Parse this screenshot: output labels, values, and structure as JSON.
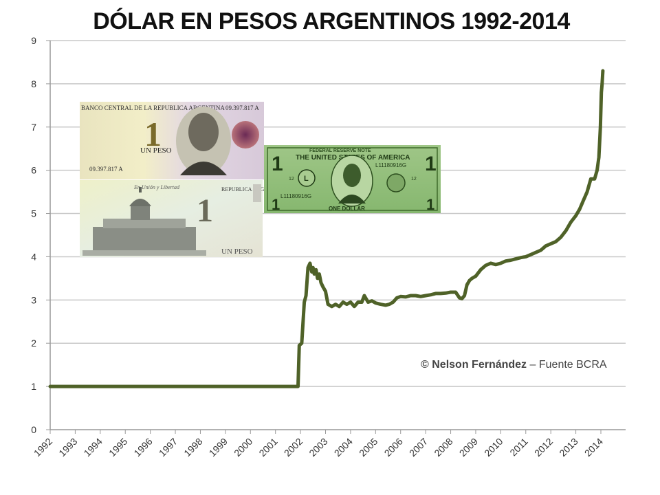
{
  "chart_data": {
    "type": "line",
    "title": "DÓLAR EN PESOS ARGENTINOS 1992-2014",
    "xlabel": "",
    "ylabel": "",
    "xlim": [
      1992,
      2014.1
    ],
    "ylim": [
      0,
      9
    ],
    "y_ticks": [
      "0",
      "1",
      "2",
      "3",
      "4",
      "5",
      "6",
      "7",
      "8",
      "9"
    ],
    "x_ticks": [
      "1992",
      "1993",
      "1994",
      "1995",
      "1996",
      "1997",
      "1998",
      "1999",
      "2000",
      "2001",
      "2002",
      "2003",
      "2004",
      "2005",
      "2006",
      "2007",
      "2008",
      "2009",
      "2010",
      "2011",
      "2012",
      "2013",
      "2014"
    ],
    "grid": true,
    "legend": "none",
    "line_color": "#4f6228",
    "series": [
      {
        "x": [
          1992.0,
          2001.9,
          2001.95,
          2002.05,
          2002.15,
          2002.22,
          2002.3,
          2002.38,
          2002.45,
          2002.5,
          2002.55,
          2002.62,
          2002.68,
          2002.75,
          2002.82,
          2002.9,
          2003.0,
          2003.1,
          2003.25,
          2003.4,
          2003.55,
          2003.7,
          2003.85,
          2004.0,
          2004.15,
          2004.3,
          2004.45,
          2004.55,
          2004.7,
          2004.85,
          2005.0,
          2005.2,
          2005.4,
          2005.55,
          2005.7,
          2005.85,
          2006.0,
          2006.2,
          2006.4,
          2006.6,
          2006.8,
          2007.0,
          2007.2,
          2007.4,
          2007.6,
          2007.8,
          2008.0,
          2008.2,
          2008.35,
          2008.45,
          2008.55,
          2008.65,
          2008.75,
          2008.85,
          2009.0,
          2009.2,
          2009.4,
          2009.6,
          2009.8,
          2010.0,
          2010.2,
          2010.4,
          2010.6,
          2010.8,
          2011.0,
          2011.2,
          2011.4,
          2011.6,
          2011.8,
          2012.0,
          2012.2,
          2012.4,
          2012.6,
          2012.8,
          2013.0,
          2013.15,
          2013.3,
          2013.45,
          2013.6,
          2013.75,
          2013.85,
          2013.92,
          2013.98,
          2014.02,
          2014.05,
          2014.08
        ],
        "values": [
          1.0,
          1.0,
          1.95,
          2.0,
          2.95,
          3.1,
          3.75,
          3.85,
          3.65,
          3.75,
          3.6,
          3.7,
          3.5,
          3.6,
          3.4,
          3.3,
          3.2,
          2.9,
          2.85,
          2.9,
          2.85,
          2.95,
          2.9,
          2.95,
          2.85,
          2.95,
          2.95,
          3.1,
          2.95,
          2.98,
          2.93,
          2.9,
          2.88,
          2.9,
          2.95,
          3.05,
          3.08,
          3.07,
          3.1,
          3.1,
          3.08,
          3.1,
          3.12,
          3.15,
          3.15,
          3.16,
          3.18,
          3.18,
          3.05,
          3.03,
          3.1,
          3.35,
          3.45,
          3.5,
          3.55,
          3.7,
          3.8,
          3.85,
          3.82,
          3.85,
          3.9,
          3.92,
          3.95,
          3.98,
          4.0,
          4.05,
          4.1,
          4.15,
          4.25,
          4.3,
          4.35,
          4.45,
          4.6,
          4.8,
          4.95,
          5.1,
          5.3,
          5.5,
          5.8,
          5.8,
          6.0,
          6.3,
          7.0,
          7.8,
          8.0,
          8.3
        ]
      }
    ]
  },
  "credit": {
    "symbol": "©",
    "author": "Nelson Fernández",
    "separator": "–",
    "source": "Fuente BCRA"
  },
  "peso_note": {
    "bank": "BANCO CENTRAL DE LA REPUBLICA ARGENTINA",
    "serial": "09.397.817 A",
    "denomination_text": "UN PESO",
    "numeral": "1",
    "motto": "En Unión y Libertad",
    "country": "REPUBLICA ARGENTINA",
    "back_text": "UN PESO"
  },
  "dollar_note": {
    "header": "FEDERAL RESERVE NOTE",
    "country": "THE UNITED STATES OF AMERICA",
    "serial": "L11180916G",
    "numeral": "1",
    "district": "L",
    "district_number": "12",
    "denomination_text": "ONE DOLLAR"
  }
}
